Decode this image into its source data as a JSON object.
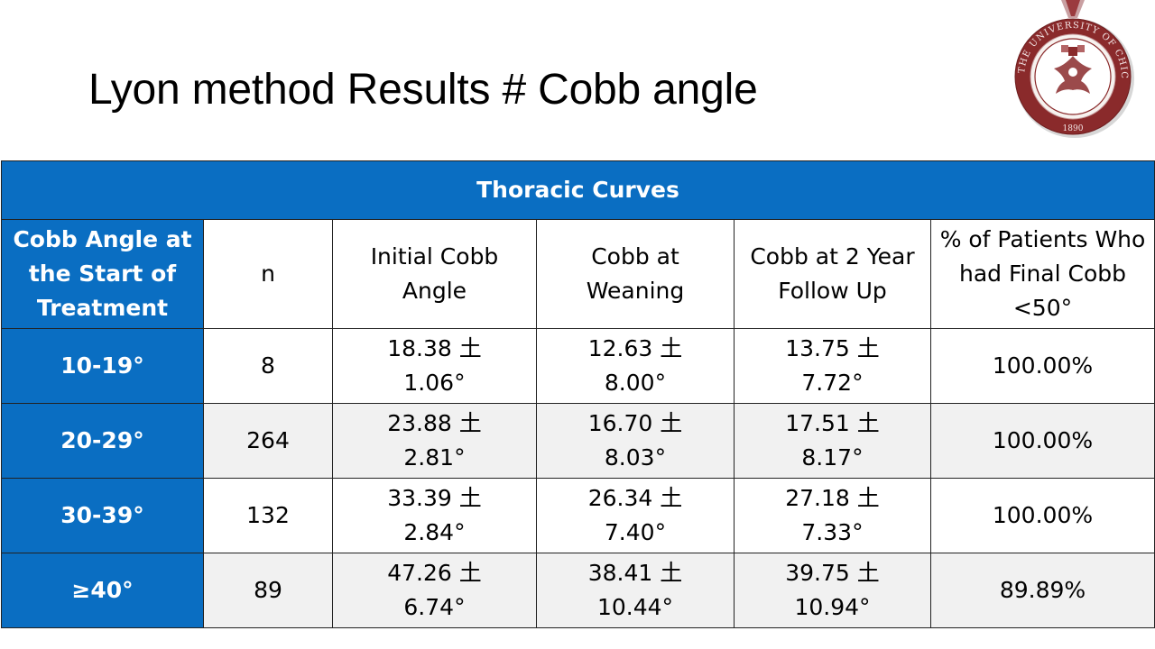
{
  "slide": {
    "title": "Lyon method Results # Cobb angle"
  },
  "seal": {
    "ring_text": "THE UNIVERSITY OF CHICAGO",
    "year": "1890",
    "colors": {
      "ring": "#8a2a2b",
      "inner": "#ffffff"
    }
  },
  "table": {
    "group_header": "Thoracic Curves",
    "columns": [
      "Cobb Angle at the Start of Treatment",
      "n",
      "Initial Cobb Angle",
      "Cobb at Weaning",
      "Cobb at 2 Year Follow Up",
      "% of Patients Who had Final Cobb <50°"
    ],
    "rows": [
      {
        "range": "10-19°",
        "n": "8",
        "initial_a": "18.38 土",
        "initial_b": "1.06°",
        "weaning_a": "12.63 土",
        "weaning_b": "8.00°",
        "followup_a": "13.75 土",
        "followup_b": "7.72°",
        "pct": "100.00%"
      },
      {
        "range": "20-29°",
        "n": "264",
        "initial_a": "23.88 土",
        "initial_b": "2.81°",
        "weaning_a": "16.70 土",
        "weaning_b": "8.03°",
        "followup_a": "17.51 土",
        "followup_b": "8.17°",
        "pct": "100.00%"
      },
      {
        "range": "30-39°",
        "n": "132",
        "initial_a": "33.39 土",
        "initial_b": "2.84°",
        "weaning_a": "26.34 土",
        "weaning_b": "7.40°",
        "followup_a": "27.18 土",
        "followup_b": "7.33°",
        "pct": "100.00%"
      },
      {
        "range": "≥40°",
        "n": "89",
        "initial_a": "47.26 土",
        "initial_b": "6.74°",
        "weaning_a": "38.41 土",
        "weaning_b": "10.44°",
        "followup_a": "39.75 土",
        "followup_b": "10.94°",
        "pct": "89.89%"
      }
    ],
    "colors": {
      "header_blue": "#0a6ec2",
      "zebra_gray": "#f1f1f1"
    }
  }
}
